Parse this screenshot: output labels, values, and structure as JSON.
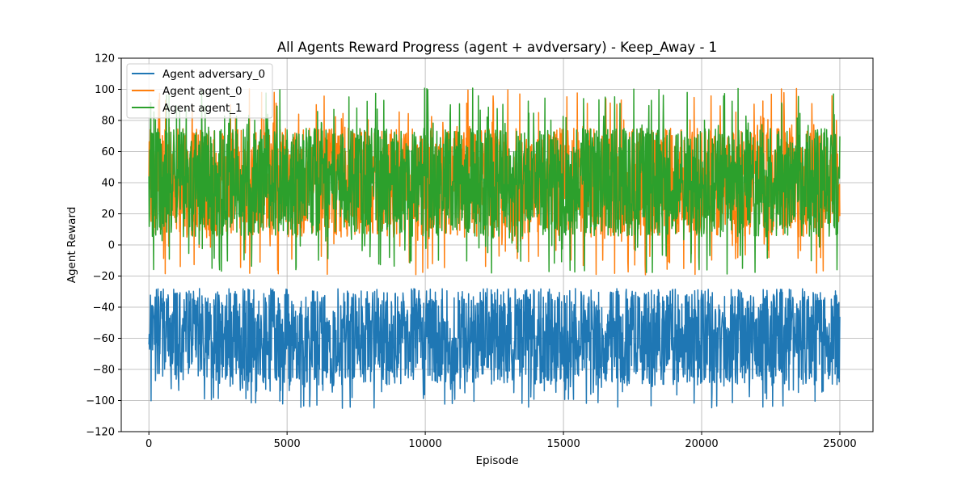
{
  "chart_data": {
    "type": "line",
    "title": "All Agents Reward Progress (agent + avdversary) - Keep_Away - 1",
    "xlabel": "Episode",
    "ylabel": "Agent Reward",
    "xlim": [
      -1000,
      26200
    ],
    "ylim": [
      -120,
      120
    ],
    "xticks": [
      0,
      5000,
      10000,
      15000,
      20000,
      25000
    ],
    "yticks": [
      -120,
      -100,
      -80,
      -60,
      -40,
      -20,
      0,
      20,
      40,
      60,
      80,
      100,
      120
    ],
    "x_range": [
      0,
      25000
    ],
    "grid": true,
    "legend_position": "top-left",
    "series": [
      {
        "name": "Agent adversary_0",
        "color": "#1f77b4",
        "typical_range": [
          -90,
          -30
        ],
        "extreme_range": [
          -105,
          -28
        ],
        "initial_value": -64
      },
      {
        "name": "Agent agent_0",
        "color": "#ff7f0e",
        "typical_range": [
          5,
          75
        ],
        "extreme_range": [
          -20,
          101
        ],
        "initial_value": 44
      },
      {
        "name": "Agent agent_1",
        "color": "#2ca02c",
        "typical_range": [
          5,
          75
        ],
        "extreme_range": [
          -20,
          101
        ],
        "initial_value": 44
      }
    ]
  }
}
